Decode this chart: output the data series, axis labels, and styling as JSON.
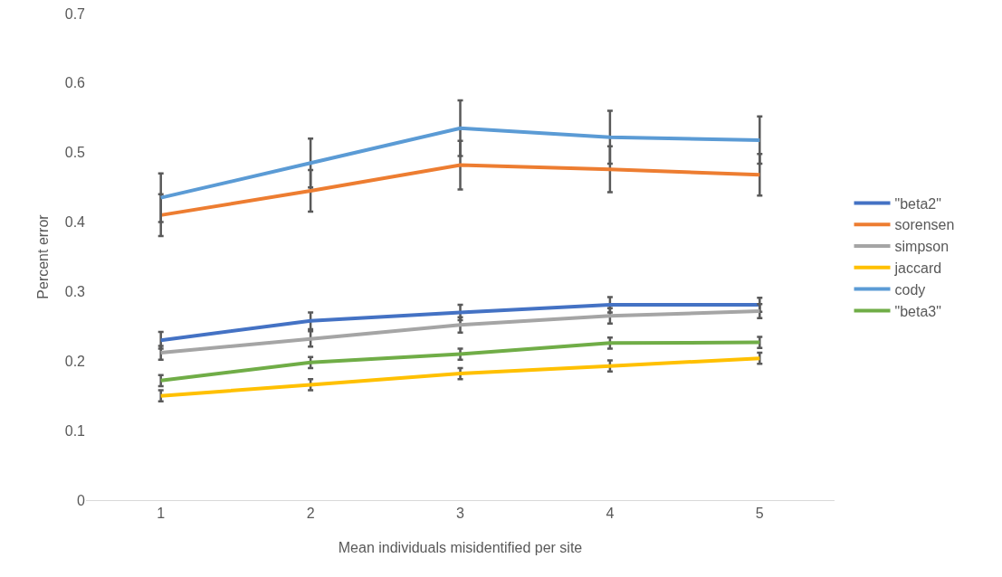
{
  "chart_data": {
    "type": "line",
    "xlabel": "Mean individuals misidentified per site",
    "ylabel": "Percent error",
    "categories": [
      "1",
      "2",
      "3",
      "4",
      "5"
    ],
    "series": [
      {
        "name": "\"beta2\"",
        "color": "#4472c4",
        "values": [
          0.23,
          0.258,
          0.27,
          0.281,
          0.281
        ],
        "errors": [
          0.012,
          0.012,
          0.011,
          0.011,
          0.01
        ]
      },
      {
        "name": "sorensen",
        "color": "#ed7d31",
        "values": [
          0.41,
          0.445,
          0.482,
          0.476,
          0.468
        ],
        "errors": [
          0.03,
          0.03,
          0.035,
          0.033,
          0.03
        ]
      },
      {
        "name": "simpson",
        "color": "#a5a5a5",
        "values": [
          0.212,
          0.232,
          0.252,
          0.265,
          0.272
        ],
        "errors": [
          0.01,
          0.011,
          0.011,
          0.011,
          0.01
        ]
      },
      {
        "name": "jaccard",
        "color": "#ffc000",
        "values": [
          0.15,
          0.166,
          0.182,
          0.193,
          0.204
        ],
        "errors": [
          0.008,
          0.008,
          0.008,
          0.008,
          0.008
        ]
      },
      {
        "name": "cody",
        "color": "#5b9bd5",
        "values": [
          0.435,
          0.485,
          0.535,
          0.522,
          0.518
        ],
        "errors": [
          0.035,
          0.035,
          0.04,
          0.038,
          0.034
        ]
      },
      {
        "name": "\"beta3\"",
        "color": "#70ad47",
        "values": [
          0.172,
          0.198,
          0.21,
          0.226,
          0.227
        ],
        "errors": [
          0.008,
          0.008,
          0.008,
          0.008,
          0.008
        ]
      }
    ],
    "ylim": [
      0,
      0.7
    ],
    "yticks": [
      0,
      0.1,
      0.2,
      0.3,
      0.4,
      0.5,
      0.6,
      0.7
    ],
    "grid": false,
    "legend": "right",
    "marker": "none",
    "line_style": "solid"
  }
}
